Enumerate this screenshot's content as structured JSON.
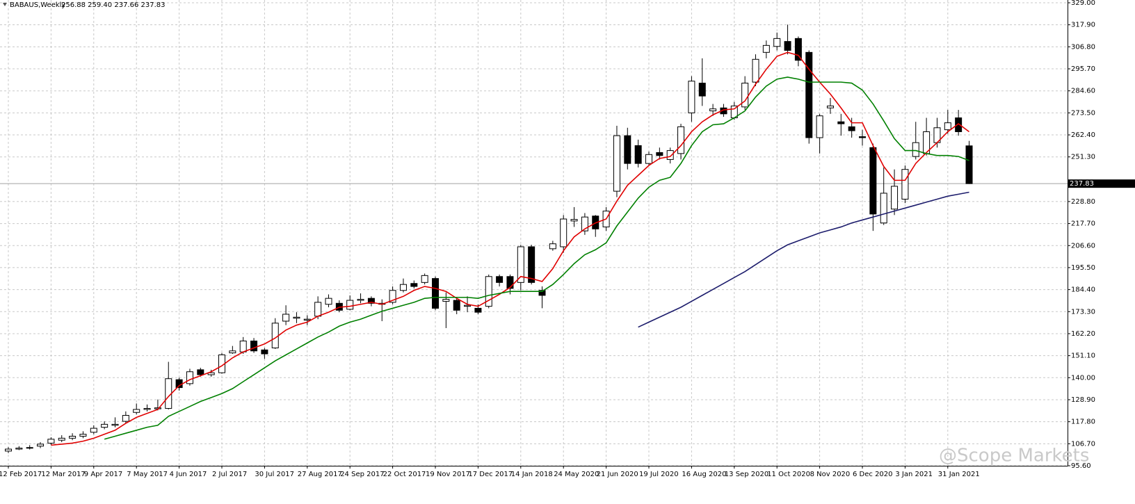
{
  "chart_data": {
    "type": "candlestick",
    "title": "BABAUS,Weekly",
    "quote": "256.88 259.40 237.66 237.83",
    "watermark": "@Scope Markets",
    "grid": true,
    "ylim": [
      95.6,
      330.4
    ],
    "yticks": [
      {
        "value": 95.6,
        "label": "95.60"
      },
      {
        "value": 106.7,
        "label": "106.70"
      },
      {
        "value": 117.8,
        "label": "117.80"
      },
      {
        "value": 128.9,
        "label": "128.90"
      },
      {
        "value": 140.0,
        "label": "140.00"
      },
      {
        "value": 151.1,
        "label": "151.10"
      },
      {
        "value": 162.2,
        "label": "162.20"
      },
      {
        "value": 173.3,
        "label": "173.30"
      },
      {
        "value": 184.4,
        "label": "184.40"
      },
      {
        "value": 195.5,
        "label": "195.50"
      },
      {
        "value": 206.6,
        "label": "206.60"
      },
      {
        "value": 217.7,
        "label": "217.70"
      },
      {
        "value": 228.8,
        "label": "228.80"
      },
      {
        "value": 251.3,
        "label": "251.30"
      },
      {
        "value": 262.4,
        "label": "262.40"
      },
      {
        "value": 273.5,
        "label": "273.50"
      },
      {
        "value": 284.6,
        "label": "284.60"
      },
      {
        "value": 295.7,
        "label": "295.70"
      },
      {
        "value": 306.8,
        "label": "306.80"
      },
      {
        "value": 317.9,
        "label": "317.90"
      },
      {
        "value": 329.0,
        "label": "329.00"
      }
    ],
    "last_price": {
      "value": 237.83,
      "label": "237.83"
    },
    "categories": [
      "12 Feb 2017",
      null,
      null,
      null,
      "12 Mar 2017",
      null,
      null,
      null,
      "9 Apr 2017",
      null,
      null,
      null,
      "7 May 2017",
      null,
      null,
      null,
      "4 Jun 2017",
      null,
      null,
      null,
      "2 Jul 2017",
      null,
      null,
      null,
      "30 Jul 2017",
      null,
      null,
      null,
      "27 Aug 2017",
      null,
      null,
      null,
      "24 Sep 2017",
      null,
      null,
      null,
      "22 Oct 2017",
      null,
      null,
      null,
      "19 Nov 2017",
      null,
      null,
      null,
      "17 Dec 2017",
      null,
      null,
      null,
      "14 Jan 2018",
      null,
      null,
      null,
      "24 May 2020",
      null,
      null,
      null,
      "21 Jun 2020",
      null,
      null,
      null,
      "19 Jul 2020",
      null,
      null,
      null,
      "16 Aug 2020",
      null,
      null,
      null,
      "13 Sep 2020",
      null,
      null,
      null,
      "11 Oct 2020",
      null,
      null,
      null,
      "8 Nov 2020",
      null,
      null,
      null,
      "6 Dec 2020",
      null,
      null,
      null,
      "3 Jan 2021",
      null,
      null,
      null,
      "31 Jan 2021",
      null,
      null
    ],
    "open": [
      103,
      104,
      104.5,
      105.5,
      107,
      108.5,
      109.5,
      110.5,
      112.5,
      115,
      116,
      118,
      122.5,
      124,
      124.3,
      124.5,
      139,
      137,
      144,
      141.5,
      142.5,
      152.5,
      153,
      158.5,
      154,
      155,
      168.5,
      170,
      169,
      171,
      177,
      177.5,
      174.5,
      179,
      180,
      177,
      178,
      184,
      187.5,
      188,
      190,
      178.5,
      179,
      176,
      175,
      176,
      191,
      191,
      188,
      206,
      184,
      205,
      206,
      219,
      214,
      221.5,
      216,
      234,
      262,
      257,
      248,
      253.5,
      250,
      253,
      273.5,
      288.5,
      274.5,
      276,
      271,
      276.5,
      289,
      304,
      307,
      309.5,
      311,
      304,
      261,
      276,
      269,
      266.5,
      261.5,
      256,
      218,
      225,
      230,
      251.5,
      253,
      258.5,
      265,
      271,
      256.88
    ],
    "high": [
      105,
      105.5,
      106,
      107.5,
      110,
      111,
      112,
      113,
      116,
      118,
      120,
      123,
      127,
      126.5,
      129,
      148,
      140,
      144.5,
      145,
      144,
      152.5,
      156,
      160.5,
      160,
      155,
      170,
      176.5,
      173,
      171.5,
      181,
      182,
      179,
      181.5,
      182.5,
      181,
      179.5,
      186,
      190,
      189,
      192.5,
      191,
      183,
      180,
      181,
      177,
      192,
      192,
      192,
      207,
      207,
      186,
      209,
      222,
      226,
      223,
      222,
      226,
      267,
      266,
      260,
      254,
      256,
      256,
      268,
      292,
      301,
      278,
      278,
      279,
      292,
      303,
      310,
      314,
      318,
      312,
      305,
      273,
      281,
      273,
      271,
      265,
      258,
      246,
      245,
      247,
      269,
      271,
      271,
      275,
      275,
      259.4
    ],
    "low": [
      102,
      103.5,
      103.8,
      104.5,
      106,
      107.5,
      108.5,
      109.5,
      111.5,
      114,
      115,
      117,
      121.5,
      123,
      123.5,
      124,
      133.5,
      136,
      140.5,
      140.5,
      142,
      152,
      152,
      152.5,
      149.5,
      154.5,
      166.5,
      167.5,
      166.5,
      169.5,
      175.5,
      173,
      174,
      177.5,
      176,
      168.5,
      177,
      183,
      185,
      187,
      174,
      165,
      172,
      173,
      172,
      175,
      186,
      182,
      184,
      187,
      175,
      204,
      203,
      216,
      212,
      211,
      214,
      231,
      245,
      246,
      247,
      250,
      248,
      250,
      269,
      277,
      272,
      271.5,
      270,
      275,
      287,
      301,
      305,
      303,
      297,
      258,
      253,
      273,
      262,
      261,
      257,
      214,
      217,
      222,
      228,
      250,
      252,
      256,
      263,
      262,
      237.66
    ],
    "close": [
      104,
      104.5,
      104.8,
      106.5,
      109,
      109.5,
      110.5,
      111.5,
      114.5,
      116.5,
      116.5,
      121,
      124,
      124.5,
      124.8,
      139.5,
      135,
      143,
      141.5,
      142.5,
      151.5,
      153.5,
      158.5,
      153.5,
      152,
      167.5,
      172,
      170.5,
      169.5,
      178,
      180,
      174,
      179,
      179.5,
      177.5,
      177.5,
      184,
      187,
      186,
      191.5,
      175,
      179.5,
      174,
      176.5,
      173,
      191,
      188,
      185,
      206,
      188,
      181.5,
      207.5,
      220,
      219.8,
      221,
      215,
      224,
      262,
      248,
      248,
      252.5,
      252,
      254.5,
      266.5,
      289.5,
      282,
      275.5,
      273,
      277,
      288.5,
      300.5,
      307.5,
      311,
      305,
      300,
      261,
      272,
      277,
      268,
      264.5,
      261,
      222.5,
      233,
      236.5,
      245,
      258.5,
      264,
      266,
      268.5,
      264,
      237.83
    ],
    "lines": [
      {
        "color": "#e00000",
        "values": [
          null,
          null,
          null,
          null,
          106,
          106.5,
          107,
          108,
          109.5,
          111.5,
          113.5,
          117,
          120,
          122,
          124,
          130.5,
          136,
          139,
          141,
          143,
          146,
          150,
          153,
          155,
          157,
          160,
          164,
          166.5,
          168,
          171,
          173,
          175.5,
          176,
          177,
          178,
          177,
          179,
          181,
          184,
          186,
          185,
          183.5,
          180,
          177,
          176,
          179,
          182,
          185.5,
          191,
          190,
          188.5,
          195,
          204,
          211,
          215,
          218,
          220,
          229,
          237,
          242,
          247,
          250.5,
          251.5,
          257,
          264,
          269,
          272.5,
          275,
          275.5,
          279.5,
          288,
          295.5,
          302,
          304,
          302.5,
          295.5,
          289,
          283,
          276,
          268.5,
          268.5,
          257,
          246.5,
          239.5,
          239.5,
          248,
          253.5,
          258.5,
          264,
          268,
          264
        ]
      },
      {
        "color": "#008000",
        "values": [
          null,
          null,
          null,
          null,
          null,
          null,
          null,
          null,
          null,
          109,
          110.5,
          112,
          113.5,
          115,
          116,
          120.5,
          123,
          125.5,
          128,
          130,
          132,
          134.5,
          138,
          141.5,
          145,
          148.5,
          151.5,
          154.5,
          157.5,
          160.5,
          163,
          166,
          168,
          169.5,
          171.5,
          173.5,
          175,
          176.5,
          178,
          180,
          180.5,
          180.5,
          180.5,
          180.5,
          180,
          181.5,
          182.5,
          183.5,
          183.5,
          183.5,
          183.5,
          187,
          192,
          197.5,
          202,
          204.5,
          208,
          216.5,
          223.5,
          230.5,
          236,
          239.5,
          241,
          248,
          257,
          264,
          267.5,
          268,
          271,
          274.5,
          281.5,
          287,
          290.5,
          291.5,
          290.5,
          289,
          289,
          289,
          289,
          288.5,
          285,
          278,
          269.5,
          260.5,
          254.5,
          254.5,
          253,
          252,
          252,
          251.5,
          249.5
        ]
      },
      {
        "color": "#1c1c6c",
        "values": [
          null,
          null,
          null,
          null,
          null,
          null,
          null,
          null,
          null,
          null,
          null,
          null,
          null,
          null,
          null,
          null,
          null,
          null,
          null,
          null,
          null,
          null,
          null,
          null,
          null,
          null,
          null,
          null,
          null,
          null,
          null,
          null,
          null,
          null,
          null,
          null,
          null,
          null,
          null,
          null,
          null,
          null,
          null,
          null,
          null,
          null,
          null,
          null,
          null,
          null,
          null,
          null,
          null,
          null,
          null,
          null,
          null,
          null,
          null,
          165.5,
          168,
          170.5,
          173,
          175.5,
          178.5,
          181.5,
          184.5,
          187.5,
          190.5,
          193.5,
          197,
          200.5,
          204,
          207,
          209,
          211,
          213,
          214.5,
          216,
          218,
          219.5,
          221,
          222.5,
          224,
          225.5,
          227,
          228.5,
          230,
          231.5,
          232.5,
          233.5
        ]
      }
    ]
  }
}
